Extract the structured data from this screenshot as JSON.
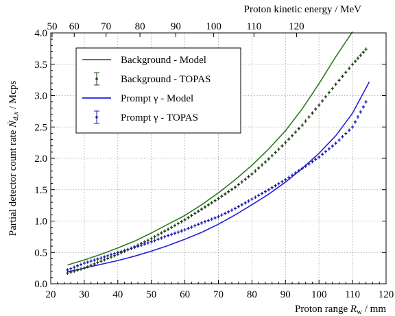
{
  "chart_data": {
    "type": "line",
    "xlabel_prefix": "Proton range ",
    "xlabel_symbol": "R",
    "xlabel_sub": "w",
    "xlabel_unit": " / mm",
    "ylabel_prefix": "Partial detector count rate ",
    "ylabel_symbol": "Ṅ",
    "ylabel_sub": "d,x",
    "ylabel_unit": " / Mcps",
    "x2label": "Proton kinetic energy  /  MeV",
    "xlim": [
      20,
      120
    ],
    "ylim": [
      0,
      4.0
    ],
    "xticks": [
      "20",
      "30",
      "40",
      "50",
      "60",
      "70",
      "80",
      "90",
      "100",
      "110",
      "120"
    ],
    "yticks": [
      "0.0",
      "0.5",
      "1.0",
      "1.5",
      "2.0",
      "2.5",
      "3.0",
      "3.5",
      "4.0"
    ],
    "x2ticks": [
      {
        "label": "50",
        "x": 20.4
      },
      {
        "label": "60",
        "x": 27.0
      },
      {
        "label": "70",
        "x": 36.5
      },
      {
        "label": "80",
        "x": 46.6
      },
      {
        "label": "90",
        "x": 57.3
      },
      {
        "label": "100",
        "x": 68.6
      },
      {
        "label": "110",
        "x": 80.6
      },
      {
        "label": "120",
        "x": 93.3
      }
    ],
    "grid": true,
    "legend_position": "top-left",
    "legend": [
      {
        "label": "Background - Model",
        "kind": "line",
        "color": "#2d7a1f"
      },
      {
        "label": "Background - TOPAS",
        "kind": "errbar",
        "color": "#1a3d10"
      },
      {
        "label": "Prompt γ - Model",
        "kind": "line",
        "color": "#1f1fe0"
      },
      {
        "label": "Prompt γ - TOPAS",
        "kind": "errbar",
        "color": "#1a1ab0"
      }
    ],
    "series": [
      {
        "name": "Background - Model",
        "kind": "line",
        "color": "#2d7a1f",
        "x": [
          25,
          30,
          35,
          40,
          45,
          50,
          55,
          60,
          65,
          70,
          75,
          80,
          85,
          90,
          95,
          100,
          105,
          110
        ],
        "y": [
          0.3,
          0.38,
          0.47,
          0.57,
          0.68,
          0.81,
          0.95,
          1.09,
          1.26,
          1.45,
          1.66,
          1.89,
          2.15,
          2.44,
          2.79,
          3.19,
          3.62,
          4.02
        ]
      },
      {
        "name": "Prompt γ - Model",
        "kind": "line",
        "color": "#1f1fe0",
        "x": [
          25,
          30,
          35,
          40,
          45,
          50,
          55,
          60,
          65,
          70,
          75,
          80,
          85,
          90,
          95,
          100,
          105,
          110,
          115
        ],
        "y": [
          0.19,
          0.25,
          0.31,
          0.37,
          0.44,
          0.52,
          0.61,
          0.71,
          0.82,
          0.95,
          1.1,
          1.26,
          1.43,
          1.62,
          1.84,
          2.08,
          2.36,
          2.72,
          3.22
        ]
      },
      {
        "name": "Background - TOPAS",
        "kind": "errbar",
        "color": "#1a3d10",
        "x": [
          25,
          30,
          35,
          40,
          45,
          50,
          55,
          60,
          65,
          70,
          75,
          80,
          85,
          90,
          95,
          100,
          105,
          110,
          114
        ],
        "y": [
          0.17,
          0.25,
          0.36,
          0.47,
          0.59,
          0.72,
          0.87,
          1.02,
          1.19,
          1.36,
          1.54,
          1.75,
          1.99,
          2.25,
          2.53,
          2.85,
          3.18,
          3.5,
          3.74
        ]
      },
      {
        "name": "Prompt γ - TOPAS",
        "kind": "errbar",
        "color": "#1a1ab0",
        "x": [
          25,
          30,
          35,
          40,
          45,
          50,
          55,
          60,
          65,
          70,
          75,
          80,
          85,
          90,
          95,
          100,
          105,
          110,
          114
        ],
        "y": [
          0.22,
          0.33,
          0.41,
          0.5,
          0.58,
          0.67,
          0.77,
          0.86,
          0.97,
          1.07,
          1.2,
          1.35,
          1.5,
          1.66,
          1.84,
          2.02,
          2.24,
          2.5,
          2.9
        ]
      }
    ]
  }
}
